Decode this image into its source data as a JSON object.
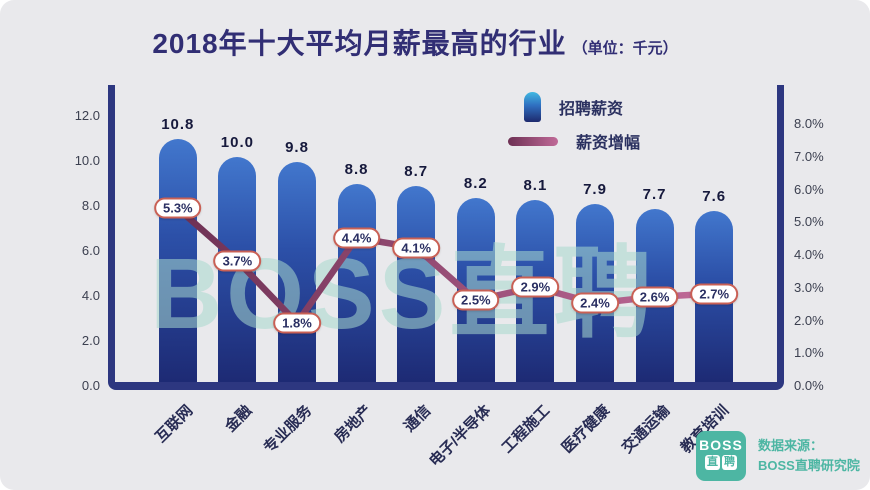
{
  "title": {
    "main": "2018年十大平均月薪最高的行业",
    "unit": "（单位：千元）"
  },
  "legend": [
    {
      "label": "招聘薪资",
      "icon": "bar-swatch-icon"
    },
    {
      "label": "薪资增幅",
      "icon": "line-swatch-icon"
    }
  ],
  "watermark": "BOSS直聘",
  "footer": {
    "logo_top": "BOSS",
    "logo_char1": "直",
    "logo_char2": "聘",
    "source_line1": "数据来源：",
    "source_line2": "BOSS直聘研究院"
  },
  "colors": {
    "title": "#312e74",
    "axis_frame": "#2d3780",
    "bar_top": "#4277cd",
    "bar_bottom": "#1d2a74",
    "line_start": "#6e3154",
    "line_end": "#c06a98",
    "pill_border": "#c96055",
    "watermark": "#a8d8ce",
    "logo": "#4db6a3",
    "background": "#e9e9ec"
  },
  "chart_data": {
    "type": "bar",
    "title": "2018年十大平均月薪最高的行业（单位：千元）",
    "categories": [
      "互联网",
      "金融",
      "专业服务",
      "房地产",
      "通信",
      "电子/半导体",
      "工程施工",
      "医疗健康",
      "交通运输",
      "教育培训"
    ],
    "series": [
      {
        "name": "招聘薪资",
        "type": "bar",
        "axis": "left",
        "values": [
          10.8,
          10.0,
          9.8,
          8.8,
          8.7,
          8.2,
          8.1,
          7.9,
          7.7,
          7.6
        ],
        "labels": [
          "10.8",
          "10.0",
          "9.8",
          "8.8",
          "8.7",
          "8.2",
          "8.1",
          "7.9",
          "7.7",
          "7.6"
        ]
      },
      {
        "name": "薪资增幅",
        "type": "line",
        "axis": "right",
        "values": [
          5.3,
          3.7,
          1.8,
          4.4,
          4.1,
          2.5,
          2.9,
          2.4,
          2.6,
          2.7
        ],
        "labels": [
          "5.3%",
          "3.7%",
          "1.8%",
          "4.4%",
          "4.1%",
          "2.5%",
          "2.9%",
          "2.4%",
          "2.6%",
          "2.7%"
        ]
      }
    ],
    "left_axis": {
      "min": 0,
      "max": 12,
      "step": 2,
      "labels": [
        "0.0",
        "2.0",
        "4.0",
        "6.0",
        "8.0",
        "10.0",
        "12.0"
      ]
    },
    "right_axis": {
      "min": 0,
      "max": 8,
      "step": 1,
      "labels": [
        "0.0%",
        "1.0%",
        "2.0%",
        "3.0%",
        "4.0%",
        "5.0%",
        "6.0%",
        "7.0%",
        "8.0%"
      ]
    },
    "legend_position": "top-right-inside",
    "grid": false
  }
}
